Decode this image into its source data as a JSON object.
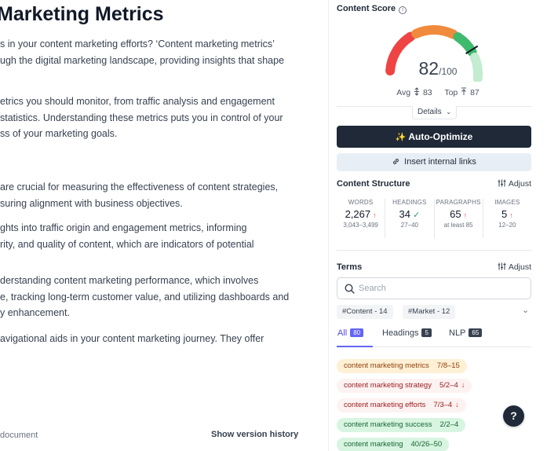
{
  "editor": {
    "title": "Marketing Metrics",
    "paragraphs": [
      [
        "s in your content marketing efforts? ‘Content marketing metrics’",
        "ugh the digital marketing landscape, providing insights that shape"
      ],
      [
        "etrics you should monitor, from traffic analysis and engagement",
        " statistics. Understanding these metrics puts you in control of your",
        "ss of your marketing goals."
      ],
      [
        "are crucial for measuring the effectiveness of content strategies,",
        "suring alignment with business objectives."
      ],
      [
        "ghts into traffic origin and engagement metrics, informing",
        "rity, and quality of content, which are indicators of potential"
      ],
      [
        "derstanding content marketing performance, which involves",
        "e, tracking long-term customer value, and utilizing dashboards and",
        "y enhancement."
      ],
      [
        "avigational aids in your content marketing journey. They offer"
      ]
    ],
    "footer_left": "document",
    "footer_right": "Show version history"
  },
  "sidebar": {
    "content_score": {
      "title": "Content Score",
      "score": "82",
      "out_of": "/100",
      "avg_label": "Avg",
      "avg_value": "83",
      "top_label": "Top",
      "top_value": "87",
      "details_label": "Details",
      "score_fraction": 0.82
    },
    "auto_optimize_label": "Auto-Optimize",
    "insert_links_label": "Insert internal links",
    "structure": {
      "title": "Content Structure",
      "adjust_label": "Adjust",
      "stats": [
        {
          "label": "WORDS",
          "value": "2,267",
          "indicator": "↑",
          "range": "3,043–3,499"
        },
        {
          "label": "HEADINGS",
          "value": "34",
          "indicator": "✓",
          "range": "27–40"
        },
        {
          "label": "PARAGRAPHS",
          "value": "65",
          "indicator": "↑",
          "range": "at least 85"
        },
        {
          "label": "IMAGES",
          "value": "5",
          "indicator": "↑",
          "range": "12–20"
        }
      ]
    },
    "terms": {
      "title": "Terms",
      "adjust_label": "Adjust",
      "search_placeholder": "Search",
      "chips": [
        "#Content - 14",
        "#Market - 12"
      ],
      "tabs": [
        {
          "label": "All",
          "count": "80"
        },
        {
          "label": "Headings",
          "count": "5"
        },
        {
          "label": "NLP",
          "count": "65"
        }
      ],
      "items": [
        {
          "name": "content marketing metrics",
          "count": "7/8–15",
          "arrow": "",
          "status": "partial"
        },
        {
          "name": "content marketing strategy",
          "count": "5/2–4",
          "arrow": "↓",
          "status": "over"
        },
        {
          "name": "content marketing efforts",
          "count": "7/3–4",
          "arrow": "↓",
          "status": "over"
        },
        {
          "name": "content marketing success",
          "count": "2/2–4",
          "arrow": "",
          "status": "good"
        },
        {
          "name": "content marketing",
          "count": "40/26–50",
          "arrow": "",
          "status": "good"
        }
      ]
    },
    "help_label": "?"
  },
  "colors": {
    "gauge_red": "#ef4444",
    "gauge_orange": "#f08a3c",
    "gauge_green": "#3fb96b",
    "gauge_light_green": "#c4ecd0",
    "primary_button": "#1f2937",
    "secondary_button": "#e8eef6",
    "tab_accent": "#6366f1",
    "term_partial_bg": "#fdf0d5",
    "term_over_bg": "#fdf2f2",
    "term_good_bg": "#d8f5e1"
  }
}
